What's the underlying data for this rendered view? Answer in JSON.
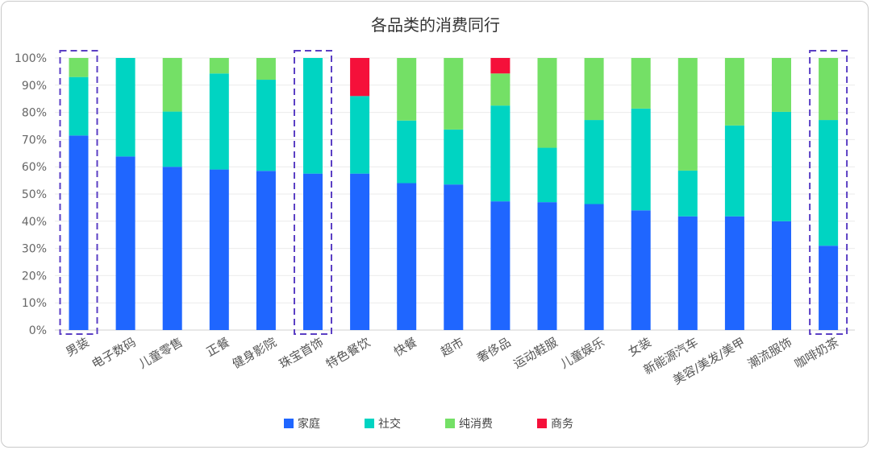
{
  "chart_data": {
    "type": "bar",
    "stacked": true,
    "title": "各品类的消费同行",
    "y_ticks": [
      "0%",
      "10%",
      "20%",
      "30%",
      "40%",
      "50%",
      "60%",
      "70%",
      "80%",
      "90%",
      "100%"
    ],
    "ylim": [
      0,
      100
    ],
    "categories": [
      "男装",
      "电子数码",
      "儿童零售",
      "正餐",
      "健身影院",
      "珠宝首饰",
      "特色餐饮",
      "快餐",
      "超市",
      "奢侈品",
      "运动鞋服",
      "儿童娱乐",
      "女装",
      "新能源汽车",
      "美容/美发/美甲",
      "潮流服饰",
      "咖啡奶茶"
    ],
    "series": [
      {
        "name": "家庭",
        "color": "#1f66ff",
        "values": [
          71.5,
          63.8,
          60.0,
          59.0,
          58.5,
          57.5,
          57.5,
          54.0,
          53.5,
          47.3,
          47.0,
          46.3,
          44.0,
          41.8,
          41.8,
          40.0,
          31.0
        ]
      },
      {
        "name": "社交",
        "color": "#00d4c2",
        "values": [
          21.5,
          36.2,
          20.3,
          35.3,
          33.5,
          42.5,
          28.5,
          23.0,
          20.2,
          35.2,
          20.0,
          30.9,
          37.4,
          16.8,
          33.4,
          40.2,
          46.2
        ]
      },
      {
        "name": "纯消费",
        "color": "#74e066",
        "values": [
          7.0,
          0.0,
          19.7,
          5.7,
          8.0,
          0.0,
          0.0,
          23.0,
          26.3,
          11.8,
          33.0,
          22.8,
          18.6,
          41.4,
          24.8,
          19.8,
          22.8
        ]
      },
      {
        "name": "商务",
        "color": "#f5103a",
        "values": [
          0.0,
          0.0,
          0.0,
          0.0,
          0.0,
          0.0,
          14.0,
          0.0,
          0.0,
          5.7,
          0.0,
          0.0,
          0.0,
          0.0,
          0.0,
          0.0,
          0.0
        ]
      }
    ],
    "highlighted": [
      "男装",
      "珠宝首饰",
      "咖啡奶茶"
    ],
    "highlight_color": "#5b3fc4",
    "grid": true,
    "legend_position": "bottom"
  }
}
